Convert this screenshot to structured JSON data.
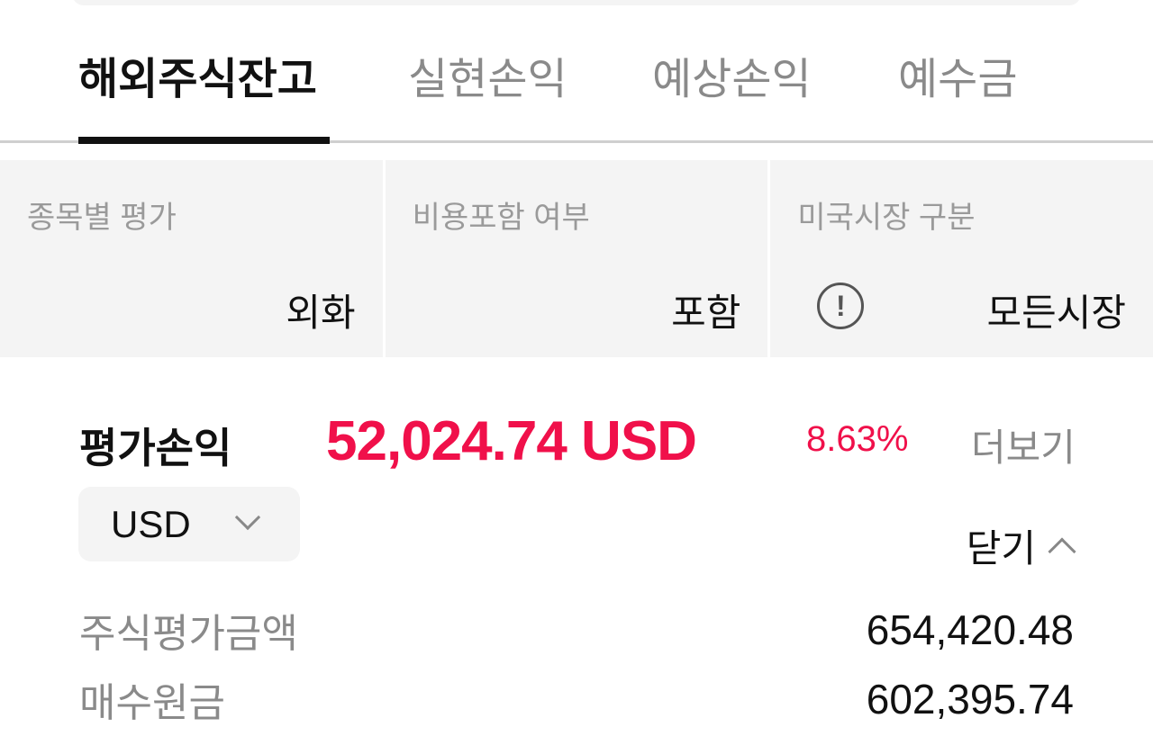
{
  "tabs": [
    {
      "label": "해외주식잔고",
      "active": true
    },
    {
      "label": "실현손익",
      "active": false
    },
    {
      "label": "예상손익",
      "active": false
    },
    {
      "label": "예수금",
      "active": false
    }
  ],
  "filters": [
    {
      "label": "종목별 평가",
      "value": "외화"
    },
    {
      "label": "비용포함 여부",
      "value": "포함"
    },
    {
      "label": "미국시장 구분",
      "value": "모든시장",
      "icon": "info-icon",
      "icon_glyph": "!"
    }
  ],
  "summary": {
    "label": "평가손익",
    "amount": "52,024.74 USD",
    "rate": "8.63%",
    "more_label": "더보기",
    "currency": "USD",
    "close_label": "닫기"
  },
  "details": [
    {
      "label": "주식평가금액",
      "value": "654,420.48"
    },
    {
      "label": "매수원금",
      "value": "602,395.74"
    }
  ],
  "colors": {
    "accent_red": "#f0104a",
    "panel_bg": "#f4f4f4"
  }
}
